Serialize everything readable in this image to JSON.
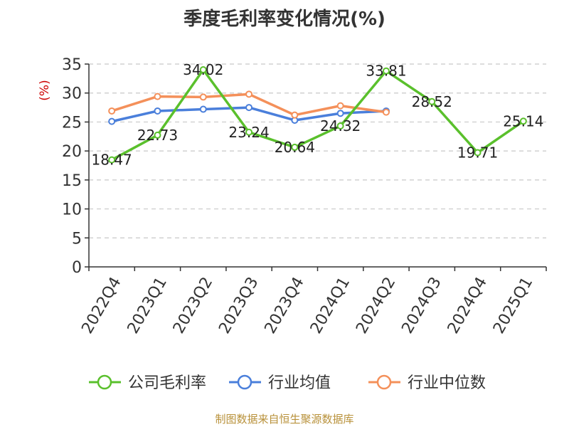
{
  "chart_data": {
    "type": "line",
    "title": "季度毛利率变化情况(%)",
    "ylabel": "(%)",
    "ylim": [
      0,
      35
    ],
    "yticks": [
      0,
      5,
      10,
      15,
      20,
      25,
      30,
      35
    ],
    "grid": true,
    "legend_position": "bottom",
    "categories": [
      "2022Q4",
      "2023Q1",
      "2023Q2",
      "2023Q3",
      "2023Q4",
      "2024Q1",
      "2024Q2",
      "2024Q3",
      "2024Q4",
      "2025Q1"
    ],
    "series": [
      {
        "name": "公司毛利率",
        "color": "#5ac02c",
        "values": [
          18.47,
          22.73,
          34.02,
          23.24,
          20.64,
          24.32,
          33.81,
          28.52,
          19.71,
          25.14
        ],
        "labels": [
          "18.47",
          "22.73",
          "34.02",
          "23.24",
          "20.64",
          "24.32",
          "33.81",
          "28.52",
          "19.71",
          "25.14"
        ],
        "show_labels": true
      },
      {
        "name": "行业均值",
        "color": "#4a7fdb",
        "values": [
          25.1,
          26.9,
          27.2,
          27.5,
          25.3,
          26.5,
          26.9,
          null,
          null,
          null
        ],
        "show_labels": false
      },
      {
        "name": "行业中位数",
        "color": "#f4905a",
        "values": [
          26.9,
          29.4,
          29.3,
          29.8,
          26.2,
          27.8,
          26.7,
          null,
          null,
          null
        ],
        "show_labels": false
      }
    ]
  },
  "source_note": "制图数据来自恒生聚源数据库"
}
